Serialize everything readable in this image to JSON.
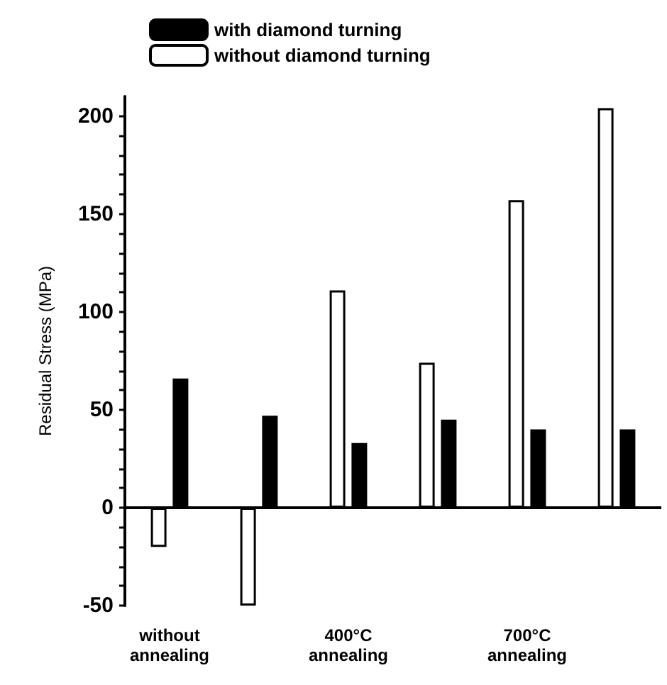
{
  "chart_data": {
    "type": "bar",
    "ylabel": "Residual Stress (MPa)",
    "categories": [
      "without\nannealing",
      null,
      "400°C\nannealing",
      null,
      "700°C\nannealing",
      null
    ],
    "series": [
      {
        "name": "with diamond turning",
        "color": "#000000",
        "values": [
          66,
          47,
          33,
          45,
          40,
          40
        ]
      },
      {
        "name": "without diamond turning",
        "color": "#ffffff",
        "values": [
          -20,
          -50,
          111,
          74,
          157,
          204
        ]
      }
    ],
    "ylim": [
      -50,
      210
    ],
    "yticks": [
      -50,
      {
        "value": -40,
        "label": null
      },
      {
        "value": -30,
        "label": null
      },
      {
        "value": -20,
        "label": null
      },
      {
        "value": -10,
        "label": null
      },
      0,
      {
        "value": 10,
        "label": null
      },
      {
        "value": 20,
        "label": null
      },
      {
        "value": 30,
        "label": null
      },
      {
        "value": 40,
        "label": null
      },
      50,
      {
        "value": 60,
        "label": null
      },
      {
        "value": 70,
        "label": null
      },
      {
        "value": 80,
        "label": null
      },
      {
        "value": 90,
        "label": null
      },
      100,
      {
        "value": 110,
        "label": null
      },
      {
        "value": 120,
        "label": null
      },
      {
        "value": 130,
        "label": null
      },
      {
        "value": 140,
        "label": null
      },
      150,
      {
        "value": 160,
        "label": null
      },
      {
        "value": 170,
        "label": null
      },
      {
        "value": 180,
        "label": null
      },
      {
        "value": 190,
        "label": null
      },
      200
    ],
    "ref_lines": [
      {
        "axis": "y",
        "value": 0,
        "color": "#000000"
      }
    ],
    "grid": false,
    "legend": "top"
  }
}
